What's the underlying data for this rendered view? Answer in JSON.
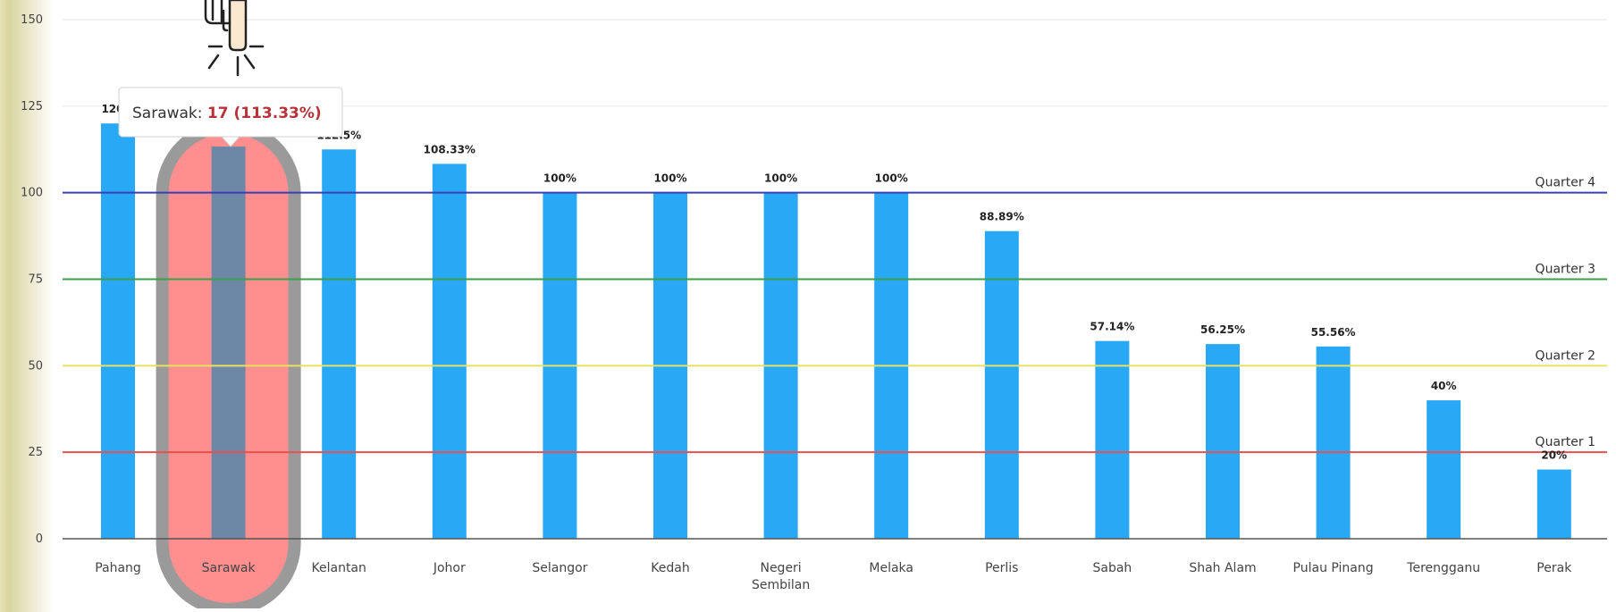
{
  "chart_data": {
    "type": "bar",
    "title": "",
    "xlabel": "",
    "ylabel": "",
    "ylim": [
      0,
      150
    ],
    "yticks": [
      0,
      25,
      50,
      75,
      100,
      125,
      150
    ],
    "grid": true,
    "categories": [
      "Pahang",
      "Sarawak",
      "Kelantan",
      "Johor",
      "Selangor",
      "Kedah",
      "Negeri Sembilan",
      "Melaka",
      "Perlis",
      "Sabah",
      "Shah Alam",
      "Pulau Pinang",
      "Terengganu",
      "Perak"
    ],
    "values": [
      120,
      113.33,
      112.5,
      108.33,
      100,
      100,
      100,
      100,
      88.89,
      57.14,
      56.25,
      55.56,
      40,
      20
    ],
    "data_labels": [
      "120%",
      "113.33%",
      "112.5%",
      "108.33%",
      "100%",
      "100%",
      "100%",
      "100%",
      "88.89%",
      "57.14%",
      "56.25%",
      "55.56%",
      "40%",
      "20%"
    ],
    "bar_color": "#29a8f5",
    "highlight_color": "#6d87a6",
    "highlight_index": 1,
    "reference_lines": [
      {
        "label": "Quarter 4",
        "value": 100,
        "color": "#3b3fb5"
      },
      {
        "label": "Quarter 3",
        "value": 75,
        "color": "#3aa04a"
      },
      {
        "label": "Quarter 2",
        "value": 50,
        "color": "#e8e060"
      },
      {
        "label": "Quarter 1",
        "value": 25,
        "color": "#e85050"
      }
    ],
    "tooltip": {
      "label": "Sarawak: ",
      "value": "17 (113.33%)"
    },
    "annotation": {
      "highlight_fill": "#ff8f8f",
      "highlight_border": "#9a9a9a",
      "pointer": "hand-pointer-icon"
    }
  }
}
